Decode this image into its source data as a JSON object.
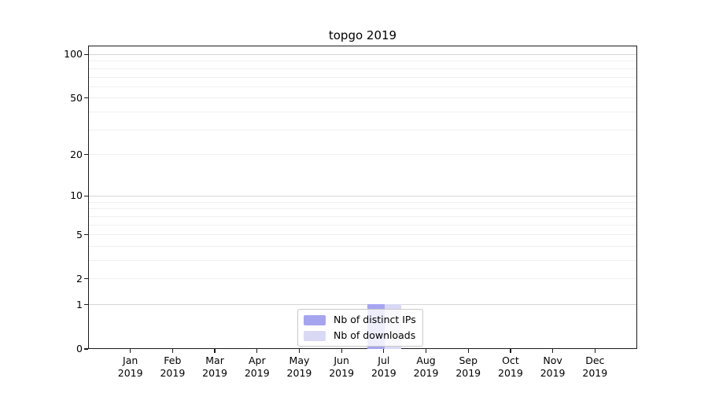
{
  "chart_data": {
    "type": "bar",
    "title": "topgo 2019",
    "x_categories": [
      {
        "month": "Jan",
        "year": "2019"
      },
      {
        "month": "Feb",
        "year": "2019"
      },
      {
        "month": "Mar",
        "year": "2019"
      },
      {
        "month": "Apr",
        "year": "2019"
      },
      {
        "month": "May",
        "year": "2019"
      },
      {
        "month": "Jun",
        "year": "2019"
      },
      {
        "month": "Jul",
        "year": "2019"
      },
      {
        "month": "Aug",
        "year": "2019"
      },
      {
        "month": "Sep",
        "year": "2019"
      },
      {
        "month": "Oct",
        "year": "2019"
      },
      {
        "month": "Nov",
        "year": "2019"
      },
      {
        "month": "Dec",
        "year": "2019"
      }
    ],
    "series": [
      {
        "name": "Nb of distinct IPs",
        "color": "#a5a5ef",
        "values": [
          0,
          0,
          0,
          0,
          0,
          0,
          1,
          0,
          0,
          0,
          0,
          0
        ]
      },
      {
        "name": "Nb of downloads",
        "color": "#d9d9f6",
        "values": [
          0,
          0,
          0,
          0,
          0,
          0,
          1,
          0,
          0,
          0,
          0,
          0
        ]
      }
    ],
    "yscale": "symlog-log1p",
    "ylim": [
      0,
      114
    ],
    "y_tick_values": [
      100,
      50,
      20,
      10,
      5,
      2,
      1,
      0
    ],
    "y_tick_labels": [
      "100",
      "50",
      "20",
      "10",
      "5",
      "2",
      "1",
      "0"
    ],
    "y_major_gridlines": [
      1,
      10,
      100
    ],
    "y_minor_gridlines": [
      2,
      3,
      4,
      5,
      6,
      7,
      8,
      9,
      20,
      30,
      40,
      50,
      60,
      70,
      80,
      90
    ],
    "grid": true,
    "legend_position": "lower center",
    "colors": {
      "major_grid": "#d6d6d6",
      "minor_grid": "#f0f0f0",
      "spine": "#1a1a1a",
      "text": "#000000",
      "legend_border": "#c9c9c9"
    }
  }
}
